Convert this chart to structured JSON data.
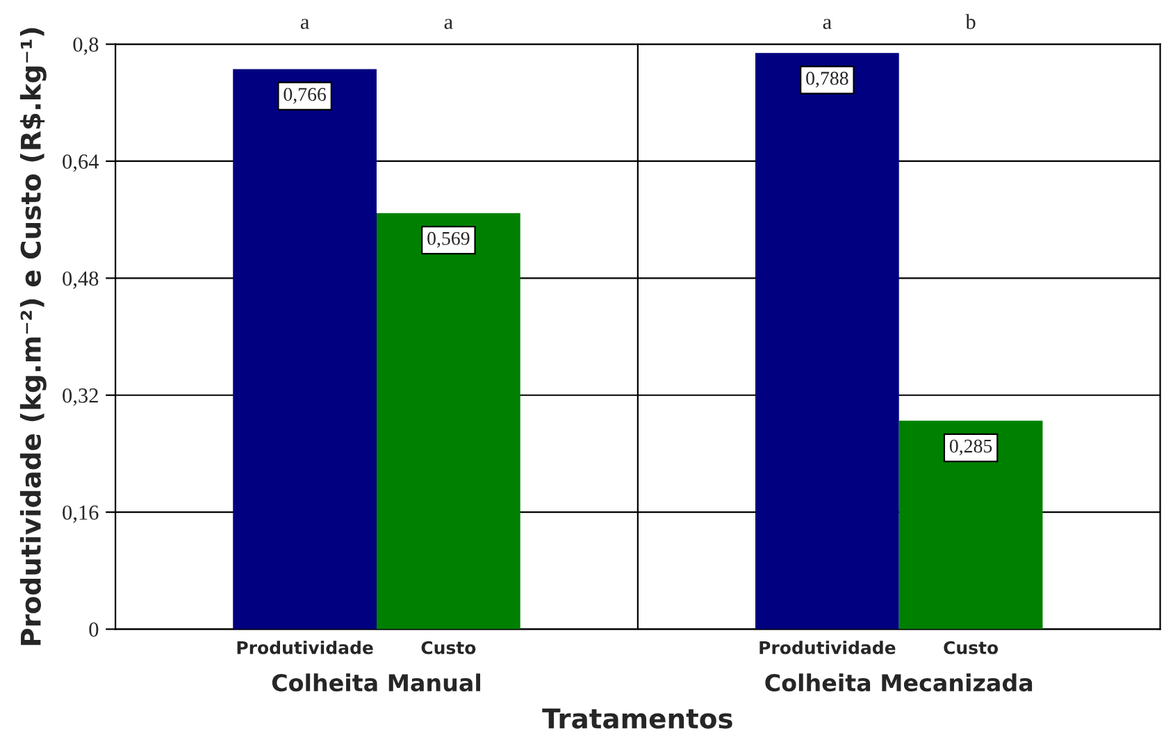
{
  "chart_data": {
    "type": "bar",
    "xlabel": "Tratamentos",
    "ylabel": "Produtividade (kg.m⁻²) e Custo (R$.kg⁻¹)",
    "categories": [
      "Colheita Manual",
      "Colheita Mecanizada"
    ],
    "series": [
      {
        "name": "Produtividade",
        "color": "#000080",
        "values": [
          0.766,
          0.788
        ],
        "value_labels": [
          "0,766",
          "0,788"
        ]
      },
      {
        "name": "Custo",
        "color": "#008000",
        "values": [
          0.569,
          0.285
        ],
        "value_labels": [
          "0,569",
          "0,285"
        ]
      }
    ],
    "ylim": [
      0,
      0.8
    ],
    "yticks": [
      {
        "value": 0,
        "label": "0"
      },
      {
        "value": 0.16,
        "label": "0,16"
      },
      {
        "value": 0.32,
        "label": "0,32"
      },
      {
        "value": 0.48,
        "label": "0,48"
      },
      {
        "value": 0.64,
        "label": "0,64"
      },
      {
        "value": 0.8,
        "label": "0,8"
      }
    ],
    "grid": "y",
    "legend": false,
    "annotations": [
      "a",
      "a",
      "a",
      "b"
    ]
  }
}
